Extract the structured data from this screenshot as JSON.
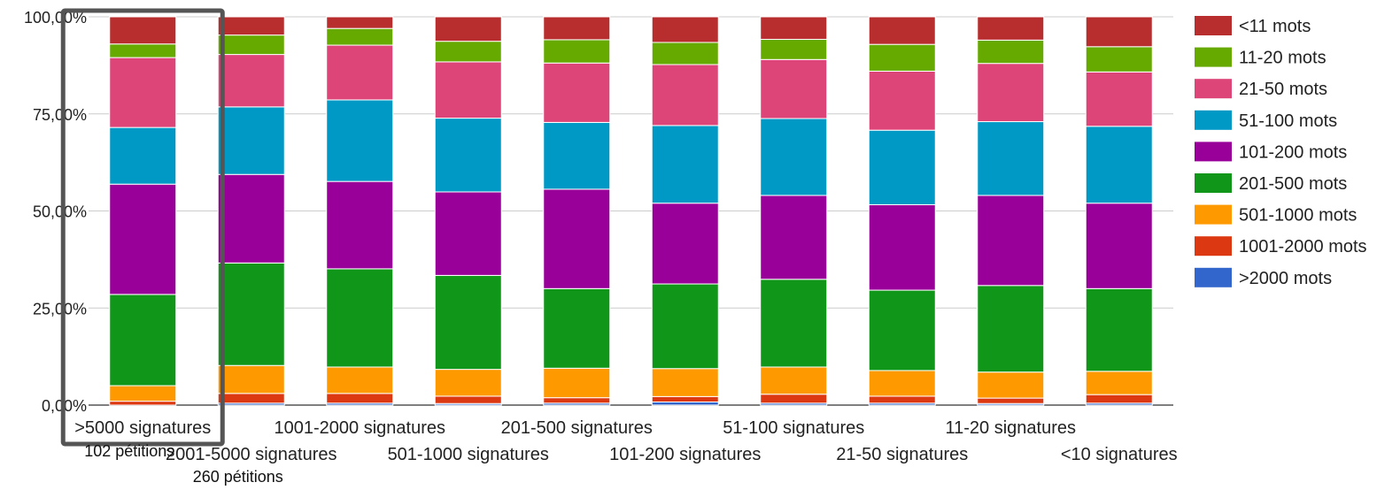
{
  "chart_data": {
    "type": "bar",
    "stacked": true,
    "normalized": true,
    "categories": [
      ">5000 signatures",
      "2001-5000 signatures",
      "1001-2000 signatures",
      "501-1000 signatures",
      "201-500 signatures",
      "101-200 signatures",
      "51-100 signatures",
      "21-50 signatures",
      "11-20 signatures",
      "<10 signatures"
    ],
    "series": [
      {
        "name": ">2000 mots",
        "color": "#3366cc",
        "values": [
          0.0,
          0.5,
          0.5,
          0.4,
          0.5,
          0.8,
          0.5,
          0.5,
          0.4,
          0.5
        ]
      },
      {
        "name": "1001-2000 mots",
        "color": "#dc3912",
        "values": [
          1.0,
          2.5,
          2.5,
          1.9,
          1.4,
          1.4,
          2.3,
          1.8,
          1.4,
          2.2
        ]
      },
      {
        "name": "501-1000 mots",
        "color": "#ff9900",
        "values": [
          4.0,
          7.2,
          6.8,
          6.9,
          7.6,
          7.2,
          7.0,
          6.6,
          6.7,
          6.0
        ]
      },
      {
        "name": "201-500 mots",
        "color": "#109618",
        "values": [
          23.5,
          26.4,
          25.3,
          24.2,
          20.5,
          21.8,
          22.6,
          20.7,
          22.3,
          21.3
        ]
      },
      {
        "name": "101-200 mots",
        "color": "#990099",
        "values": [
          28.4,
          22.8,
          22.5,
          21.5,
          25.6,
          20.8,
          21.6,
          22.0,
          23.2,
          22.0
        ]
      },
      {
        "name": "51-100 mots",
        "color": "#0099c6",
        "values": [
          14.6,
          17.4,
          21.0,
          19.0,
          17.2,
          20.0,
          19.8,
          19.2,
          19.0,
          19.8
        ]
      },
      {
        "name": "21-50 mots",
        "color": "#dd4477",
        "values": [
          18.0,
          13.5,
          14.1,
          14.5,
          15.3,
          15.7,
          15.2,
          15.2,
          15.0,
          14.0
        ]
      },
      {
        "name": "11-20 mots",
        "color": "#66aa00",
        "values": [
          3.5,
          5.0,
          4.3,
          5.3,
          6.0,
          5.7,
          5.2,
          6.9,
          6.0,
          6.5
        ]
      },
      {
        "name": "<11 mots",
        "color": "#b82e2e",
        "values": [
          7.0,
          4.7,
          3.0,
          6.3,
          5.9,
          6.6,
          5.8,
          7.1,
          6.0,
          7.7
        ]
      }
    ],
    "legend_order": [
      "<11 mots",
      "11-20 mots",
      "21-50 mots",
      "51-100 mots",
      "101-200 mots",
      "201-500 mots",
      "501-1000 mots",
      "1001-2000 mots",
      ">2000 mots"
    ],
    "yticks": [
      "0,00%",
      "25,00%",
      "50,00%",
      "75,00%",
      "100,00%"
    ],
    "ylim": [
      0,
      100
    ],
    "grid": true,
    "legend_position": "right",
    "title": "",
    "xlabel": "",
    "ylabel": "",
    "annotations": [
      {
        "text": "102 pétitions",
        "category_index": 0
      },
      {
        "text": "260 pétitions",
        "category_index": 1
      }
    ],
    "highlight_category_index": 0
  }
}
